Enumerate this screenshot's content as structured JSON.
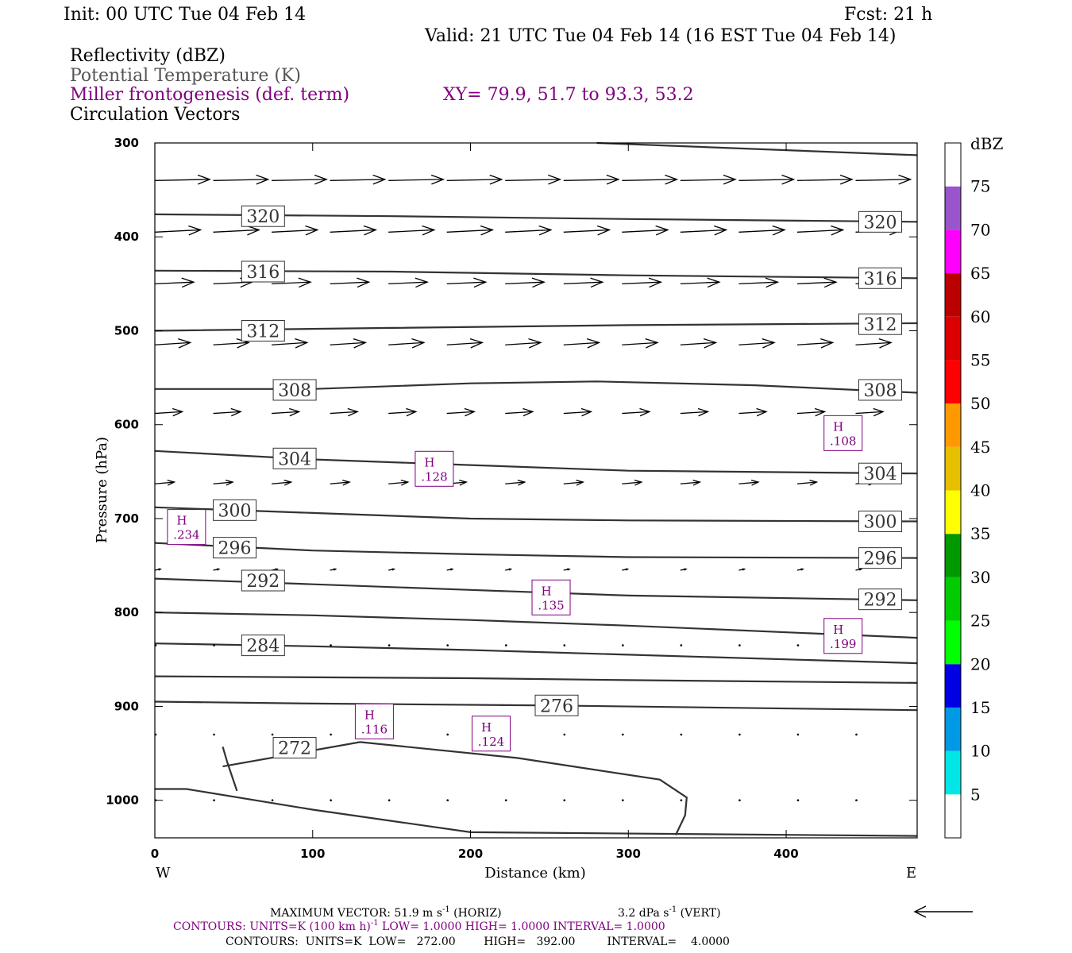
{
  "header": {
    "init": "Init: 00 UTC Tue 04 Feb 14",
    "fcst": "Fcst:   21 h",
    "valid": "Valid: 21 UTC Tue 04 Feb 14 (16 EST Tue 04 Feb 14)",
    "legend_fields": [
      {
        "text": "Reflectivity (dBZ)",
        "color": "#000000"
      },
      {
        "text": "Potential Temperature (K)",
        "color": "#555555"
      },
      {
        "text": "Miller frontogenesis (def. term)",
        "color": "#800080"
      },
      {
        "text": "Circulation Vectors",
        "color": "#000000"
      }
    ],
    "xy": "XY=  79.9, 51.7 to  93.3, 53.2",
    "xy_color": "#800080"
  },
  "chart_data": {
    "type": "cross-section",
    "xlabel": "Distance (km)",
    "ylabel": "Pressure (hPa)",
    "xlim": [
      0,
      483
    ],
    "ylim": [
      1040,
      300
    ],
    "x_ticks": [
      0,
      100,
      200,
      300,
      400
    ],
    "y_ticks": [
      300,
      400,
      500,
      600,
      700,
      800,
      900,
      1000
    ],
    "x_left_label": "W",
    "x_right_label": "E",
    "isentropes": [
      {
        "theta": 324,
        "labeled": false,
        "points": [
          [
            280,
            300
          ],
          [
            483,
            313
          ]
        ]
      },
      {
        "theta": 320,
        "labeled": true,
        "points": [
          [
            0,
            376
          ],
          [
            150,
            378
          ],
          [
            300,
            381
          ],
          [
            483,
            384
          ]
        ]
      },
      {
        "theta": 316,
        "labeled": true,
        "points": [
          [
            0,
            436
          ],
          [
            150,
            437
          ],
          [
            300,
            441
          ],
          [
            483,
            444
          ]
        ]
      },
      {
        "theta": 312,
        "labeled": true,
        "points": [
          [
            0,
            500
          ],
          [
            150,
            497
          ],
          [
            300,
            494
          ],
          [
            483,
            492
          ]
        ]
      },
      {
        "theta": 308,
        "labeled": true,
        "points": [
          [
            0,
            562
          ],
          [
            100,
            562
          ],
          [
            200,
            556
          ],
          [
            280,
            554
          ],
          [
            380,
            558
          ],
          [
            483,
            566
          ]
        ]
      },
      {
        "theta": 304,
        "labeled": true,
        "points": [
          [
            0,
            628
          ],
          [
            100,
            637
          ],
          [
            200,
            643
          ],
          [
            300,
            649
          ],
          [
            483,
            652
          ]
        ]
      },
      {
        "theta": 300,
        "labeled": true,
        "points": [
          [
            0,
            688
          ],
          [
            100,
            694
          ],
          [
            200,
            700
          ],
          [
            300,
            702
          ],
          [
            483,
            703
          ]
        ]
      },
      {
        "theta": 296,
        "labeled": true,
        "points": [
          [
            0,
            726
          ],
          [
            100,
            734
          ],
          [
            200,
            738
          ],
          [
            300,
            741
          ],
          [
            483,
            742
          ]
        ]
      },
      {
        "theta": 292,
        "labeled": true,
        "points": [
          [
            0,
            764
          ],
          [
            100,
            770
          ],
          [
            200,
            776
          ],
          [
            300,
            782
          ],
          [
            483,
            787
          ]
        ]
      },
      {
        "theta": 288,
        "labeled": false,
        "points": [
          [
            0,
            800
          ],
          [
            100,
            803
          ],
          [
            200,
            808
          ],
          [
            300,
            814
          ],
          [
            483,
            827
          ]
        ]
      },
      {
        "theta": 284,
        "labeled": true,
        "points": [
          [
            0,
            833
          ],
          [
            100,
            836
          ],
          [
            200,
            840
          ],
          [
            300,
            845
          ],
          [
            483,
            854
          ]
        ]
      },
      {
        "theta": 280,
        "labeled": false,
        "points": [
          [
            0,
            868
          ],
          [
            200,
            870
          ],
          [
            300,
            872
          ],
          [
            483,
            875
          ]
        ]
      },
      {
        "theta": 276,
        "labeled": true,
        "points": [
          [
            0,
            895
          ],
          [
            100,
            897
          ],
          [
            250,
            899
          ],
          [
            483,
            904
          ]
        ]
      },
      {
        "theta": 272,
        "labeled": true,
        "points": [
          [
            43,
            964
          ],
          [
            130,
            938
          ],
          [
            230,
            955
          ],
          [
            320,
            978
          ],
          [
            337,
            997
          ],
          [
            336,
            1016
          ],
          [
            330,
            1037
          ]
        ]
      },
      {
        "theta": 272,
        "labeled": false,
        "points": [
          [
            43,
            943
          ],
          [
            46,
            960
          ],
          [
            52,
            990
          ]
        ]
      },
      {
        "theta": 268,
        "labeled": false,
        "points": [
          [
            0,
            988
          ],
          [
            20,
            988
          ],
          [
            100,
            1010
          ],
          [
            200,
            1034
          ],
          [
            483,
            1038
          ]
        ]
      }
    ],
    "contour_labels": [
      {
        "value": "320",
        "x": 55,
        "p": 378
      },
      {
        "value": "320",
        "x": 446,
        "p": 384
      },
      {
        "value": "316",
        "x": 55,
        "p": 437
      },
      {
        "value": "316",
        "x": 446,
        "p": 444
      },
      {
        "value": "312",
        "x": 55,
        "p": 500
      },
      {
        "value": "312",
        "x": 446,
        "p": 493
      },
      {
        "value": "308",
        "x": 75,
        "p": 563
      },
      {
        "value": "308",
        "x": 446,
        "p": 563
      },
      {
        "value": "304",
        "x": 75,
        "p": 636
      },
      {
        "value": "304",
        "x": 446,
        "p": 652
      },
      {
        "value": "300",
        "x": 37,
        "p": 691
      },
      {
        "value": "300",
        "x": 446,
        "p": 703
      },
      {
        "value": "296",
        "x": 37,
        "p": 731
      },
      {
        "value": "296",
        "x": 446,
        "p": 742
      },
      {
        "value": "292",
        "x": 55,
        "p": 766
      },
      {
        "value": "292",
        "x": 446,
        "p": 786
      },
      {
        "value": "284",
        "x": 55,
        "p": 835
      },
      {
        "value": "276",
        "x": 241,
        "p": 899
      },
      {
        "value": "272",
        "x": 75,
        "p": 944
      }
    ],
    "frontogenesis_maxima": [
      {
        "letter": "H",
        "value": ".234",
        "x": 9,
        "p": 709
      },
      {
        "letter": "H",
        "value": ".128",
        "x": 166,
        "p": 647
      },
      {
        "letter": "H",
        "value": ".108",
        "x": 425,
        "p": 609
      },
      {
        "letter": "H",
        "value": ".135",
        "x": 240,
        "p": 784
      },
      {
        "letter": "H",
        "value": ".199",
        "x": 425,
        "p": 825
      },
      {
        "letter": "H",
        "value": ".116",
        "x": 128,
        "p": 916
      },
      {
        "letter": "H",
        "value": ".124",
        "x": 202,
        "p": 929
      }
    ],
    "vector_rows": [
      {
        "p": 340,
        "u": 0.96,
        "w": 0.02
      },
      {
        "p": 395,
        "u": 0.8,
        "w": 0.04
      },
      {
        "p": 450,
        "u": 0.68,
        "w": 0.03
      },
      {
        "p": 515,
        "u": 0.62,
        "w": 0.04
      },
      {
        "p": 588,
        "u": 0.48,
        "w": 0.03
      },
      {
        "p": 663,
        "u": 0.34,
        "w": 0.03
      },
      {
        "p": 755,
        "u": 0.1,
        "w": 0.02
      },
      {
        "p": 835,
        "u": 0.01,
        "w": 0.0
      },
      {
        "p": 930,
        "u": 0.01,
        "w": 0.0
      },
      {
        "p": 1000,
        "u": 0.01,
        "w": 0.0
      }
    ],
    "vector_x": [
      0,
      37,
      74,
      111,
      148,
      185,
      222,
      259,
      296,
      333,
      370,
      407,
      444
    ],
    "colorbar": {
      "unit": "dBZ",
      "levels": [
        5,
        10,
        15,
        20,
        25,
        30,
        35,
        40,
        45,
        50,
        55,
        60,
        65,
        70,
        75
      ],
      "colors": [
        "#ffffff",
        "#00e5e5",
        "#0099e5",
        "#0000e5",
        "#00ff00",
        "#00cc00",
        "#009900",
        "#ffff00",
        "#e5bf00",
        "#ff9900",
        "#ff0000",
        "#dd0000",
        "#bb0000",
        "#ff00ff",
        "#9955cc",
        "#ffffff"
      ]
    },
    "grid": false
  },
  "footer": {
    "max_vector_prefix": "MAXIMUM VECTOR:  51.9 m s",
    "max_vector_exp": "-1",
    "max_vector_horiz": " (HORIZ)",
    "max_vector_vert_prefix": "3.2 dPa s",
    "max_vector_vert_exp": "-1",
    "max_vector_vert": " (VERT)",
    "contours1_prefix": "CONTOURS:  UNITS=K (100 km h)",
    "contours1_exp": "-1",
    "contours1_rest": "  LOW=   1.0000       HIGH=   1.0000       INTERVAL=    1.0000",
    "contours1_color": "#800080",
    "contours2": "CONTOURS:  UNITS=K  LOW=   272.00        HIGH=   392.00         INTERVAL=    4.0000"
  }
}
